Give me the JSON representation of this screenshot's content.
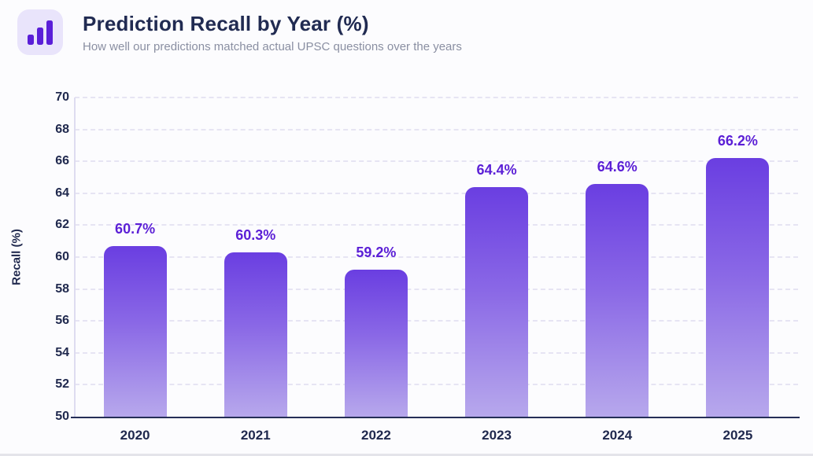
{
  "header": {
    "title": "Prediction Recall by Year (%)",
    "subtitle": "How well our predictions matched actual UPSC questions over the years",
    "icon": "bar-chart-icon"
  },
  "chart_data": {
    "type": "bar",
    "title": "Prediction Recall by Year (%)",
    "categories": [
      "2020",
      "2021",
      "2022",
      "2023",
      "2024",
      "2025"
    ],
    "values": [
      60.7,
      60.3,
      59.2,
      64.4,
      64.6,
      66.2
    ],
    "value_labels": [
      "60.7%",
      "60.3%",
      "59.2%",
      "64.4%",
      "64.6%",
      "66.2%"
    ],
    "xlabel": "",
    "ylabel": "Recall (%)",
    "ylim": [
      50,
      70
    ],
    "yticks": [
      50,
      52,
      54,
      56,
      58,
      60,
      62,
      64,
      66,
      68,
      70
    ],
    "grid": "horizontal-dashed",
    "legend_position": "none"
  },
  "colors": {
    "accent_purple": "#5b1fd6",
    "bar_gradient_top": "#6a3ee1",
    "bar_gradient_mid": "#8a68e6",
    "bar_gradient_bottom": "#b7a8ec",
    "axis_text": "#20294e",
    "title_text": "#212b52",
    "subtitle_text": "#8a8fa2",
    "gridline": "#e6e4f3",
    "axis_line": "#dedcf0",
    "baseline": "#252e57",
    "icon_bg": "#e9e4fb",
    "icon_fg": "#5a1ed8",
    "background": "#fcfcfe"
  }
}
